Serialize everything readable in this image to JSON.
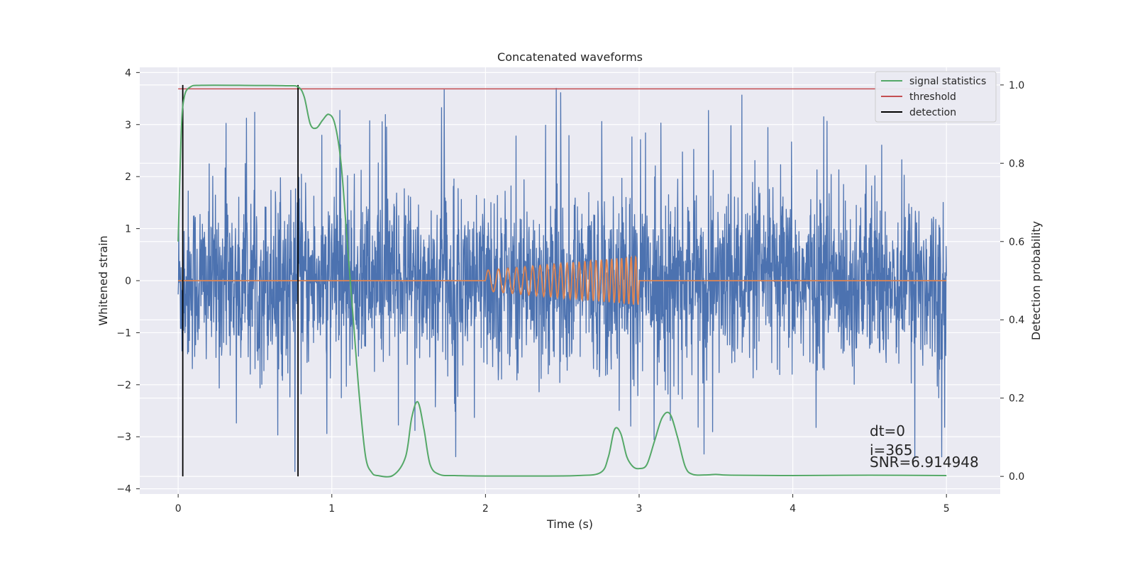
{
  "chart_data": {
    "type": "line",
    "title": "Concatenated waveforms",
    "xlabel": "Time (s)",
    "ylabel": "Whitened strain",
    "y2label": "Detection probability",
    "xlim": [
      -0.25,
      5.35
    ],
    "ylim": [
      -4.1,
      4.1
    ],
    "y2lim": [
      -0.045,
      1.045
    ],
    "xticks": [
      0,
      1,
      2,
      3,
      4,
      5
    ],
    "yticks": [
      -4,
      -3,
      -2,
      -1,
      0,
      1,
      2,
      3,
      4
    ],
    "y2ticks": [
      0.0,
      0.2,
      0.4,
      0.6,
      0.8,
      1.0
    ],
    "grid": true,
    "legend_position": "top-right",
    "series": [
      {
        "name": "",
        "role": "strain",
        "axis": "left",
        "color": "#4c72b0",
        "duration": [
          0,
          5
        ],
        "peak_range": [
          -3.7,
          3.8
        ],
        "bulk_range": [
          -1.9,
          2.6
        ]
      },
      {
        "name": "",
        "role": "injected-signal",
        "axis": "left",
        "color": "#dd8452",
        "active_span": [
          2.0,
          3.0
        ],
        "amplitude_range": [
          0.2,
          0.47
        ],
        "flat_value": 0
      },
      {
        "name": "signal statistics",
        "axis": "right",
        "color": "#55a868",
        "x": [
          0.0,
          0.02,
          0.04,
          0.08,
          0.15,
          0.4,
          0.7,
          0.78,
          0.82,
          0.86,
          0.9,
          0.94,
          0.98,
          1.02,
          1.06,
          1.1,
          1.14,
          1.18,
          1.22,
          1.26,
          1.3,
          1.4,
          1.48,
          1.52,
          1.56,
          1.6,
          1.64,
          1.7,
          1.8,
          2.0,
          2.3,
          2.6,
          2.75,
          2.8,
          2.84,
          2.88,
          2.92,
          2.96,
          3.0,
          3.05,
          3.1,
          3.15,
          3.2,
          3.25,
          3.3,
          3.35,
          3.45,
          3.5,
          3.6,
          4.0,
          4.5,
          5.0
        ],
        "values": [
          0.6,
          0.88,
          0.97,
          0.995,
          0.999,
          0.999,
          0.998,
          0.995,
          0.97,
          0.9,
          0.89,
          0.91,
          0.925,
          0.9,
          0.8,
          0.6,
          0.4,
          0.2,
          0.05,
          0.01,
          0.002,
          0.003,
          0.05,
          0.15,
          0.19,
          0.12,
          0.03,
          0.005,
          0.002,
          0.001,
          0.001,
          0.002,
          0.01,
          0.05,
          0.12,
          0.11,
          0.05,
          0.025,
          0.02,
          0.03,
          0.09,
          0.15,
          0.16,
          0.1,
          0.025,
          0.005,
          0.004,
          0.005,
          0.003,
          0.002,
          0.003,
          0.002
        ]
      },
      {
        "name": "threshold",
        "axis": "right",
        "color": "#c44e52",
        "x": [
          0,
          5
        ],
        "values": [
          0.99,
          0.99
        ]
      },
      {
        "name": "detection",
        "axis": "right",
        "color": "#000000",
        "vlines": [
          0.03,
          0.78
        ],
        "yrange": [
          0.0,
          1.0
        ]
      }
    ],
    "annotations": {
      "dt": "dt=0",
      "i": "i=365",
      "snr": "SNR=6.914948"
    }
  }
}
